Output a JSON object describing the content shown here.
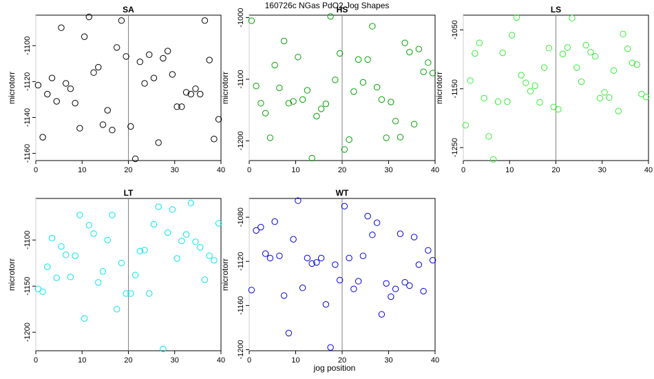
{
  "chart_data": {
    "type": "scatter",
    "title": "160726c   NGas PdO2 Jog Shapes",
    "xlabel": "jog position",
    "xlim": [
      0,
      40
    ],
    "x_ticks": [
      0,
      10,
      20,
      30,
      40
    ],
    "reference_x": 20,
    "grid": false,
    "panels": [
      {
        "name": "SA",
        "color": "#000000",
        "ylabel": "microtorr",
        "ylim": [
          -1164,
          -1083
        ],
        "y_ticks": [
          -1100,
          -1120,
          -1140,
          -1160
        ],
        "x": [
          0.5,
          1.5,
          2.5,
          3.5,
          4.5,
          5.5,
          6.5,
          7.5,
          8.5,
          9.5,
          10.5,
          11.5,
          12.5,
          13.5,
          14.5,
          15.5,
          16.5,
          17.5,
          18.5,
          19.5,
          20.5,
          21.5,
          22.5,
          23.5,
          24.5,
          25.5,
          26.5,
          27.5,
          28.5,
          29.5,
          30.5,
          31.5,
          32.5,
          33.5,
          34.5,
          35.5,
          36.5,
          37.5,
          38.5,
          39.5
        ],
        "y": [
          -1122,
          -1151,
          -1127,
          -1118,
          -1131,
          -1090,
          -1121,
          -1124,
          -1132,
          -1146,
          -1095,
          -1084,
          -1115,
          -1112,
          -1144,
          -1136,
          -1147,
          -1101,
          -1086,
          -1106,
          -1145,
          -1163,
          -1109,
          -1121,
          -1105,
          -1118,
          -1154,
          -1107,
          -1103,
          -1116,
          -1134,
          -1134,
          -1126,
          -1127,
          -1124,
          -1127,
          -1086,
          -1108,
          -1152,
          -1141
        ]
      },
      {
        "name": "HS",
        "color": "#00a000",
        "ylabel": "microtorr",
        "ylim": [
          -1232,
          -996
        ],
        "y_ticks": [
          -1000,
          -1100,
          -1200
        ],
        "x": [
          0.5,
          1.5,
          2.5,
          3.5,
          4.5,
          5.5,
          6.5,
          7.5,
          8.5,
          9.5,
          10.5,
          11.5,
          12.5,
          13.5,
          14.5,
          15.5,
          16.5,
          17.5,
          18.5,
          19.5,
          20.5,
          21.5,
          22.5,
          23.5,
          24.5,
          25.5,
          26.5,
          27.5,
          28.5,
          29.5,
          30.5,
          31.5,
          32.5,
          33.5,
          34.5,
          35.5,
          36.5,
          37.5,
          38.5,
          39.5
        ],
        "y": [
          -1005,
          -1111,
          -1139,
          -1155,
          -1195,
          -1077,
          -1114,
          -1038,
          -1139,
          -1136,
          -1064,
          -1133,
          -1118,
          -1228,
          -1160,
          -1148,
          -1140,
          -998,
          -1101,
          -1058,
          -1214,
          -1198,
          -1120,
          -1068,
          -1105,
          -1068,
          -1014,
          -1113,
          -1133,
          -1195,
          -1137,
          -1168,
          -1194,
          -1041,
          -1056,
          -1173,
          -1051,
          -1088,
          -1073,
          -1090
        ]
      },
      {
        "name": "LS",
        "color": "#33ee33",
        "ylabel": "microtorr",
        "ylim": [
          -1272,
          -1025
        ],
        "y_ticks": [
          -1050,
          -1150,
          -1250
        ],
        "x": [
          0.5,
          1.5,
          2.5,
          3.5,
          4.5,
          5.5,
          6.5,
          7.5,
          8.5,
          9.5,
          10.5,
          11.5,
          12.5,
          13.5,
          14.5,
          15.5,
          16.5,
          17.5,
          18.5,
          19.5,
          20.5,
          21.5,
          22.5,
          23.5,
          24.5,
          25.5,
          26.5,
          27.5,
          28.5,
          29.5,
          30.5,
          31.5,
          32.5,
          33.5,
          34.5,
          35.5,
          36.5,
          37.5,
          38.5,
          39.5
        ],
        "y": [
          -1212,
          -1136,
          -1090,
          -1072,
          -1166,
          -1231,
          -1270,
          -1172,
          -1089,
          -1172,
          -1059,
          -1029,
          -1127,
          -1140,
          -1154,
          -1145,
          -1173,
          -1114,
          -1081,
          -1181,
          -1185,
          -1091,
          -1080,
          -1030,
          -1114,
          -1138,
          -1076,
          -1088,
          -1095,
          -1166,
          -1156,
          -1165,
          -1119,
          -1188,
          -1057,
          -1082,
          -1106,
          -1109,
          -1159,
          -1164
        ]
      },
      {
        "name": "LT",
        "color": "#00e5ee",
        "ylabel": "microtorr",
        "ylim": [
          -1220,
          -1055
        ],
        "y_ticks": [
          -1100,
          -1150,
          -1200
        ],
        "x": [
          0.5,
          1.5,
          2.5,
          3.5,
          4.5,
          5.5,
          6.5,
          7.5,
          8.5,
          9.5,
          10.5,
          11.5,
          12.5,
          13.5,
          14.5,
          15.5,
          16.5,
          17.5,
          18.5,
          19.5,
          20.5,
          21.5,
          22.5,
          23.5,
          24.5,
          25.5,
          26.5,
          27.5,
          28.5,
          29.5,
          30.5,
          31.5,
          32.5,
          33.5,
          34.5,
          35.5,
          36.5,
          37.5,
          38.5,
          39.5
        ],
        "y": [
          -1153,
          -1156,
          -1129,
          -1098,
          -1141,
          -1107,
          -1116,
          -1140,
          -1117,
          -1073,
          -1185,
          -1084,
          -1093,
          -1146,
          -1134,
          -1100,
          -1073,
          -1175,
          -1125,
          -1158,
          -1158,
          -1138,
          -1112,
          -1111,
          -1158,
          -1083,
          -1064,
          -1218,
          -1092,
          -1067,
          -1120,
          -1101,
          -1094,
          -1060,
          -1102,
          -1108,
          -1143,
          -1117,
          -1122,
          -1082
        ]
      },
      {
        "name": "WT",
        "color": "#0000dd",
        "ylabel": "microtorr",
        "ylim": [
          -1201,
          -1063
        ],
        "y_ticks": [
          -1080,
          -1120,
          -1160,
          -1200
        ],
        "x": [
          0.5,
          1.5,
          2.5,
          3.5,
          4.5,
          5.5,
          6.5,
          7.5,
          8.5,
          9.5,
          10.5,
          11.5,
          12.5,
          13.5,
          14.5,
          15.5,
          16.5,
          17.5,
          18.5,
          19.5,
          20.5,
          21.5,
          22.5,
          23.5,
          24.5,
          25.5,
          26.5,
          27.5,
          28.5,
          29.5,
          30.5,
          31.5,
          32.5,
          33.5,
          34.5,
          35.5,
          36.5,
          37.5,
          38.5,
          39.5
        ],
        "y": [
          -1146,
          -1092,
          -1089,
          -1113,
          -1117,
          -1084,
          -1115,
          -1151,
          -1185,
          -1100,
          -1065,
          -1144,
          -1117,
          -1122,
          -1121,
          -1117,
          -1159,
          -1198,
          -1123,
          -1137,
          -1070,
          -1117,
          -1145,
          -1138,
          -1115,
          -1079,
          -1096,
          -1085,
          -1168,
          -1140,
          -1152,
          -1145,
          -1095,
          -1139,
          -1142,
          -1098,
          -1123,
          -1147,
          -1110,
          -1119
        ]
      }
    ]
  }
}
